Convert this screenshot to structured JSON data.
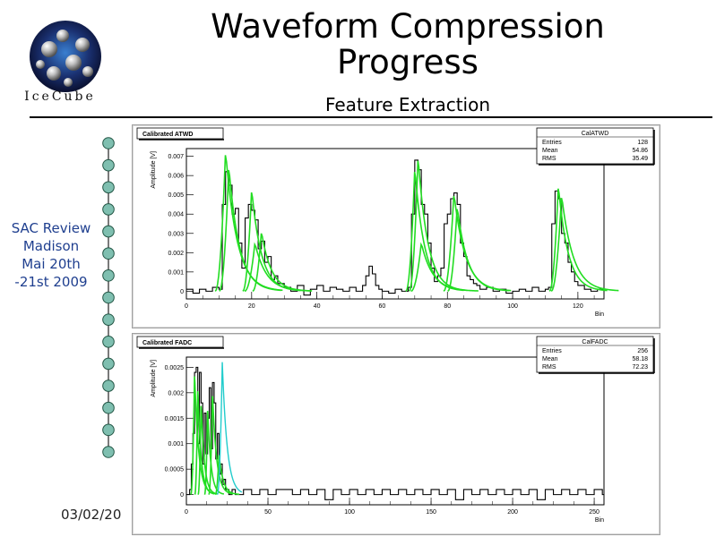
{
  "header": {
    "title": "Waveform Compression Progress",
    "subtitle": "Feature Extraction",
    "logo_text": "IceCube"
  },
  "sidebar": {
    "review_lines": [
      "SAC Review",
      "Madison",
      "Mai 20th",
      "-21st  2009"
    ],
    "date": "03/02/20"
  },
  "colors": {
    "fit": "#22dd22",
    "fit_cyan": "#22cccc",
    "histogram": "#000000",
    "chain": "#7fbfb0"
  },
  "chart_data": [
    {
      "type": "line",
      "title": "Calibrated ATWD",
      "ylabel": "Amplitude [V]",
      "xlabel": "Bin",
      "xlim": [
        0,
        128
      ],
      "ylim": [
        -0.0004,
        0.0074
      ],
      "xticks": [
        "0",
        "20",
        "40",
        "60",
        "80",
        "100",
        "120"
      ],
      "yticks": [
        "0",
        "0.001",
        "0.002",
        "0.003",
        "0.004",
        "0.005",
        "0.006",
        "0.007"
      ],
      "stats": {
        "name": "CalATWD",
        "rows": [
          [
            "Entries",
            "128"
          ],
          [
            "Mean",
            "54.86"
          ],
          [
            "RMS",
            "35.49"
          ]
        ]
      },
      "series": [
        {
          "x": [
            0,
            2,
            4,
            6,
            8,
            10,
            11,
            12,
            13,
            14,
            15,
            16,
            17,
            18,
            19,
            20,
            21,
            22,
            23,
            24,
            25,
            26,
            27,
            28,
            29,
            30,
            32,
            34,
            36,
            38,
            40,
            42,
            44,
            46,
            48,
            50,
            52,
            54,
            55,
            56,
            57,
            58,
            59,
            60,
            62,
            64,
            66,
            68,
            69,
            70,
            71,
            72,
            73,
            74,
            75,
            76,
            77,
            78,
            79,
            80,
            81,
            82,
            83,
            84,
            85,
            86,
            87,
            88,
            89,
            90,
            92,
            94,
            96,
            98,
            100,
            102,
            104,
            106,
            108,
            110,
            111,
            112,
            113,
            114,
            115,
            116,
            117,
            118,
            119,
            120,
            122,
            124,
            126,
            128
          ],
          "values": [
            0.0001,
            -0.0001,
            0.0001,
            0.0,
            0.0002,
            0.0001,
            0.0045,
            0.0062,
            0.0055,
            0.004,
            0.0043,
            0.0025,
            0.0012,
            0.0038,
            0.0045,
            0.0042,
            0.0037,
            0.0022,
            0.0026,
            0.0015,
            0.0018,
            0.0006,
            0.0008,
            0.0004,
            0.0004,
            0.0002,
            0.0,
            0.0003,
            -0.0002,
            0.0001,
            0.0003,
            0.0,
            0.0002,
            0.0001,
            0.0,
            0.0002,
            0.0,
            0.0003,
            0.0008,
            0.0013,
            0.0009,
            0.0003,
            0.0001,
            0.0,
            -0.0001,
            0.0001,
            0.0,
            0.0002,
            0.004,
            0.0068,
            0.0063,
            0.0045,
            0.004,
            0.0025,
            0.0012,
            0.0005,
            0.0008,
            0.0012,
            0.0035,
            0.004,
            0.0048,
            0.0051,
            0.0045,
            0.0025,
            0.0018,
            0.0008,
            0.0006,
            0.0004,
            0.0003,
            0.0001,
            0.0002,
            0.0,
            0.0001,
            -0.0001,
            0.0,
            0.0001,
            0.0,
            0.0002,
            0.0,
            0.0001,
            0.0002,
            0.0035,
            0.0052,
            0.0048,
            0.003,
            0.0025,
            0.0015,
            0.001,
            0.0005,
            0.0003,
            0.0001,
            0.0,
            0.0001,
            0.0
          ]
        },
        {
          "fits": [
            [
              12,
              0.0073,
              3.5
            ],
            [
              13,
              0.0065,
              3.2
            ],
            [
              20,
              0.0053,
              3.0
            ],
            [
              23,
              0.0031,
              3.0
            ],
            [
              21,
              0.0025,
              3.5
            ],
            [
              71,
              0.007,
              3.0
            ],
            [
              70,
              0.0064,
              3.0
            ],
            [
              72,
              0.0025,
              3.5
            ],
            [
              82,
              0.0051,
              3.5
            ],
            [
              83,
              0.0044,
              3.2
            ],
            [
              114,
              0.0055,
              3.0
            ],
            [
              115,
              0.005,
              3.5
            ]
          ]
        }
      ]
    },
    {
      "type": "line",
      "title": "Calibrated FADC",
      "ylabel": "Amplitude [V]",
      "xlabel": "Bin",
      "xlim": [
        0,
        256
      ],
      "ylim": [
        -0.0002,
        0.0027
      ],
      "xticks": [
        "0",
        "50",
        "100",
        "150",
        "200",
        "250"
      ],
      "yticks": [
        "0",
        "0.0005",
        "0.001",
        "0.0015",
        "0.002",
        "0.0025"
      ],
      "stats": {
        "name": "CalFADC",
        "rows": [
          [
            "Entries",
            "256"
          ],
          [
            "Mean",
            "58.18"
          ],
          [
            "RMS",
            "72.23"
          ]
        ]
      },
      "series": [
        {
          "x": [
            0,
            2,
            3,
            4,
            5,
            6,
            7,
            8,
            9,
            10,
            11,
            12,
            13,
            14,
            15,
            16,
            17,
            18,
            19,
            20,
            21,
            22,
            23,
            24,
            26,
            28,
            30,
            35,
            40,
            45,
            50,
            55,
            60,
            65,
            70,
            75,
            80,
            85,
            90,
            95,
            100,
            105,
            110,
            115,
            120,
            125,
            130,
            135,
            140,
            145,
            150,
            155,
            160,
            165,
            170,
            175,
            180,
            185,
            190,
            195,
            200,
            205,
            210,
            215,
            220,
            225,
            230,
            235,
            240,
            245,
            250,
            255
          ],
          "values": [
            0.0,
            0.0001,
            0.0006,
            0.0012,
            0.0024,
            0.0025,
            0.001,
            0.0024,
            0.0018,
            0.0006,
            0.0016,
            0.0008,
            0.0015,
            0.0021,
            0.0009,
            0.0022,
            0.0018,
            0.0007,
            0.0012,
            0.0004,
            0.0006,
            0.0002,
            0.0003,
            0.0001,
            0.0,
            0.0001,
            0.0,
            0.0001,
            0.0,
            0.0001,
            0.0,
            0.0001,
            0.0001,
            0.0,
            0.0001,
            0.0,
            0.0001,
            -0.0001,
            0.0001,
            0.0,
            0.0001,
            0.0,
            0.0001,
            0.0,
            0.0001,
            0.0,
            0.0001,
            0.0,
            0.0001,
            0.0,
            0.0001,
            0.0,
            0.0001,
            -0.0001,
            0.0001,
            0.0,
            0.0001,
            0.0,
            0.0001,
            0.0,
            0.0001,
            0.0,
            0.0001,
            -0.0001,
            0.0001,
            0.0,
            0.0001,
            0.0,
            0.0001,
            0.0,
            0.0001,
            0.0
          ]
        },
        {
          "fits": [
            [
              5,
              0.0024,
              2.5
            ],
            [
              7,
              0.0021,
              2.0
            ],
            [
              9,
              0.0018,
              2.0
            ],
            [
              13,
              0.0017,
              2.0
            ],
            [
              16,
              0.002,
              2.5
            ],
            [
              20,
              0.0008,
              2.5
            ]
          ]
        },
        {
          "cyan_fit": [
            22,
            0.0026,
            3.0
          ]
        }
      ]
    }
  ]
}
